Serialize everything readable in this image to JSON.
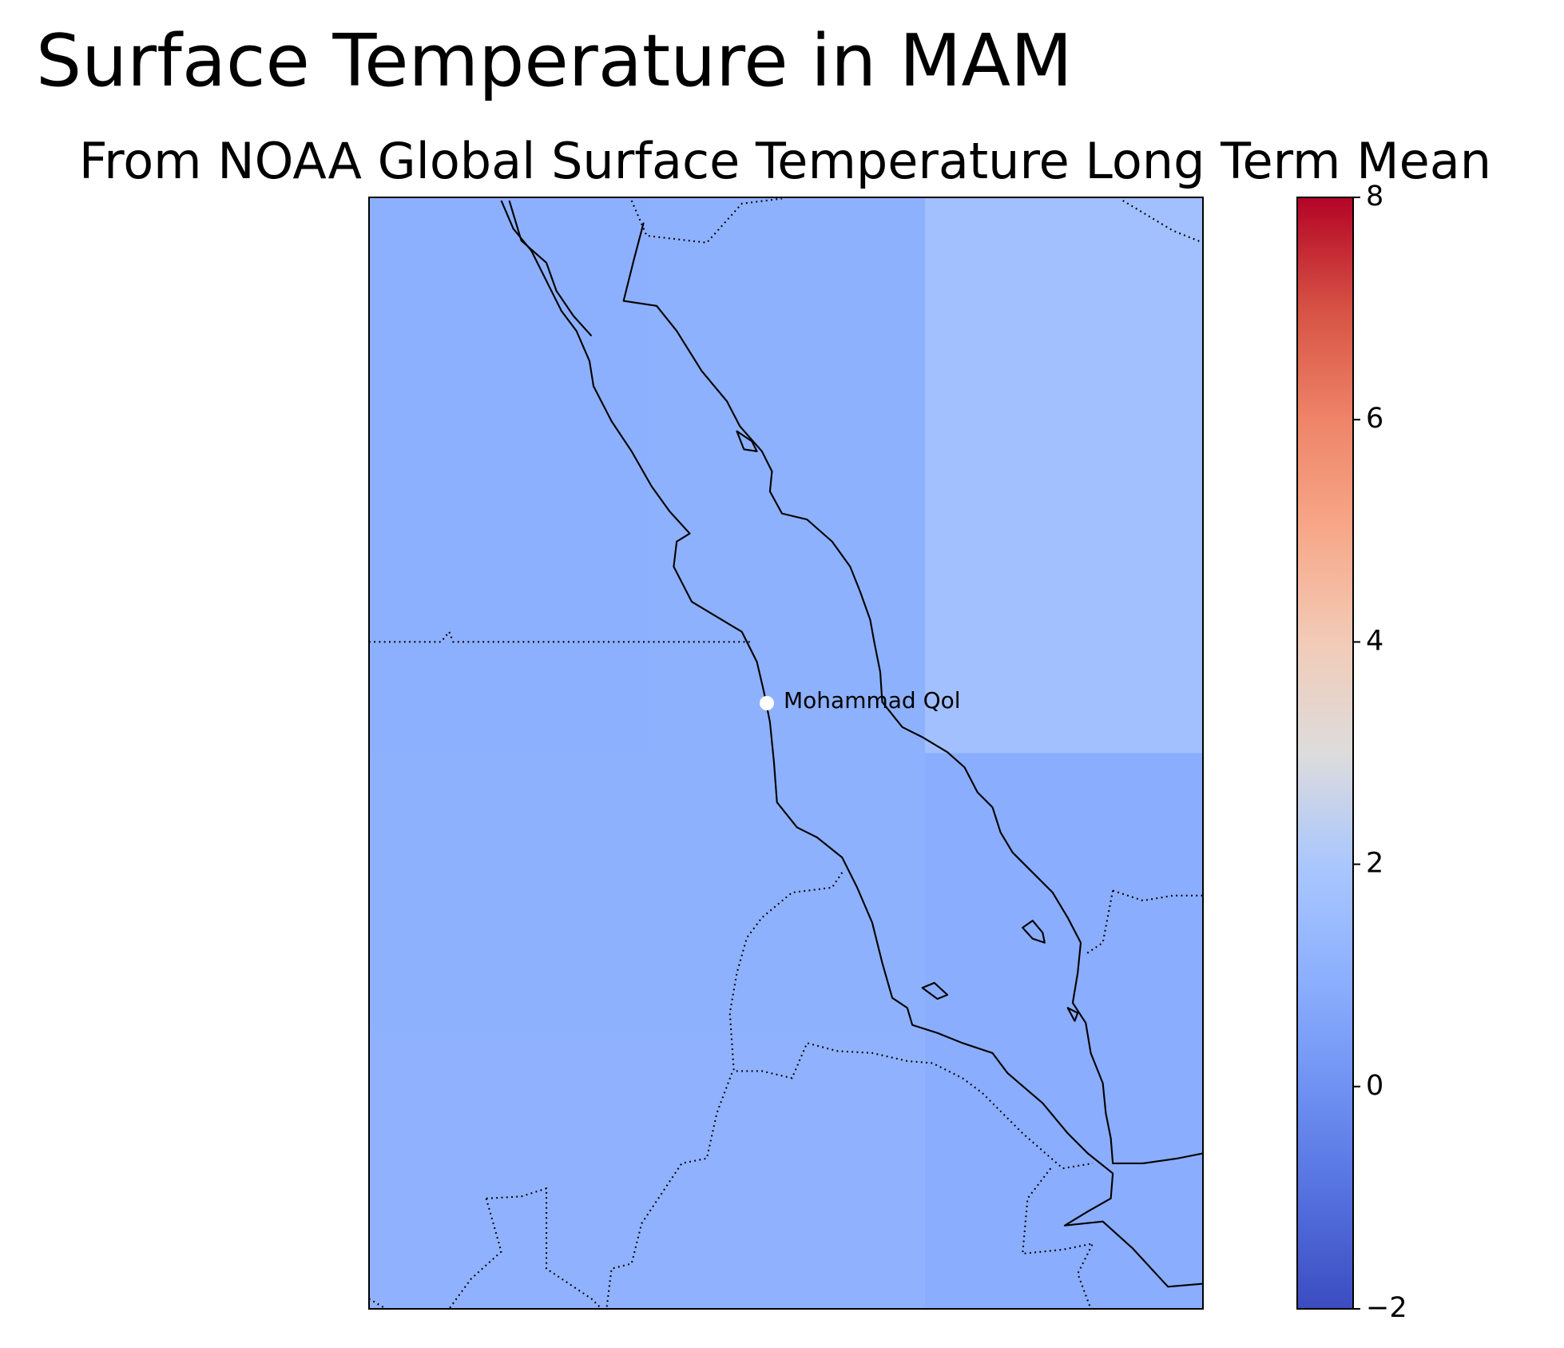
{
  "chart_data": {
    "type": "heatmap_map",
    "title": "Surface Temperature in MAM",
    "subtitle": "From NOAA Global Surface Temperature Long Term Mean",
    "colormap": "coolwarm",
    "values": [
      [
        1.0,
        1.05,
        1.7
      ],
      [
        1.0,
        1.05,
        1.7
      ],
      [
        1.05,
        1.05,
        0.9
      ],
      [
        1.1,
        1.1,
        0.9
      ]
    ],
    "clim": [
      -2,
      8
    ],
    "colorbar_ticks": [
      {
        "value": -2,
        "label": "−2"
      },
      0,
      2,
      4,
      6,
      8
    ],
    "marker": {
      "label": "Mohammad Qol",
      "color": "#ffffff"
    }
  }
}
